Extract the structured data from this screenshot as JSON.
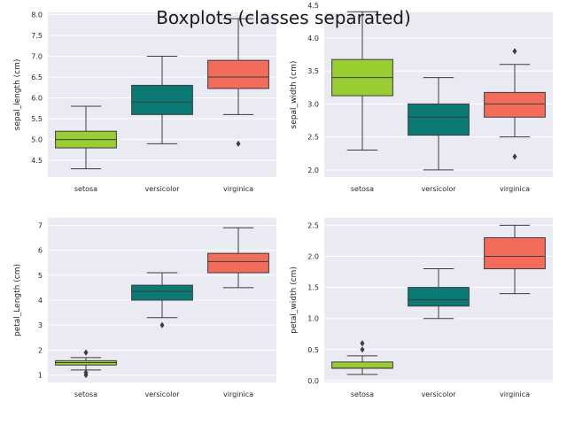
{
  "suptitle": "Boxplots (classes separated)",
  "colors": {
    "setosa": "#9acd32",
    "versicolor": "#0b7a75",
    "virginica": "#f26b5b",
    "axes_bg": "#eaeaf2",
    "grid": "#ffffff",
    "line": "#3d3d3d"
  },
  "chart_data": [
    {
      "type": "box",
      "ylabel": "sepal_length (cm)",
      "categories": [
        "setosa",
        "versicolor",
        "virginica"
      ],
      "yticks": [
        4.5,
        5.0,
        5.5,
        6.0,
        6.5,
        7.0,
        7.5,
        8.0
      ],
      "tick_labels": [
        "4.5",
        "5.0",
        "5.5",
        "6.0",
        "6.5",
        "7.0",
        "7.5",
        "8.0"
      ],
      "ylim": [
        4.1,
        8.05
      ],
      "grid": true,
      "boxes": [
        {
          "name": "setosa",
          "whislo": 4.3,
          "q1": 4.8,
          "med": 5.0,
          "q3": 5.2,
          "whishi": 5.8,
          "fliers": []
        },
        {
          "name": "versicolor",
          "whislo": 4.9,
          "q1": 5.6,
          "med": 5.9,
          "q3": 6.3,
          "whishi": 7.0,
          "fliers": []
        },
        {
          "name": "virginica",
          "whislo": 5.6,
          "q1": 6.225,
          "med": 6.5,
          "q3": 6.9,
          "whishi": 7.9,
          "fliers": [
            4.9
          ]
        }
      ]
    },
    {
      "type": "box",
      "ylabel": "sepal_width (cm)",
      "categories": [
        "setosa",
        "versicolor",
        "virginica"
      ],
      "yticks": [
        2.0,
        2.5,
        3.0,
        3.5,
        4.0,
        4.5
      ],
      "tick_labels": [
        "2.0",
        "2.5",
        "3.0",
        "3.5",
        "4.0",
        "4.5"
      ],
      "ylim": [
        1.89,
        4.39
      ],
      "grid": true,
      "boxes": [
        {
          "name": "setosa",
          "whislo": 2.3,
          "q1": 3.125,
          "med": 3.4,
          "q3": 3.675,
          "whishi": 4.4,
          "fliers": []
        },
        {
          "name": "versicolor",
          "whislo": 2.0,
          "q1": 2.525,
          "med": 2.8,
          "q3": 3.0,
          "whishi": 3.4,
          "fliers": []
        },
        {
          "name": "virginica",
          "whislo": 2.5,
          "q1": 2.8,
          "med": 3.0,
          "q3": 3.175,
          "whishi": 3.6,
          "fliers": [
            3.8,
            2.2
          ]
        }
      ]
    },
    {
      "type": "box",
      "ylabel": "petal_Length (cm)",
      "categories": [
        "setosa",
        "versicolor",
        "virginica"
      ],
      "yticks": [
        1,
        2,
        3,
        4,
        5,
        6,
        7
      ],
      "tick_labels": [
        "1",
        "2",
        "3",
        "4",
        "5",
        "6",
        "7"
      ],
      "ylim": [
        0.7,
        7.3
      ],
      "grid": true,
      "boxes": [
        {
          "name": "setosa",
          "whislo": 1.2,
          "q1": 1.4,
          "med": 1.5,
          "q3": 1.575,
          "whishi": 1.7,
          "fliers": [
            1.9,
            1.1,
            1.0
          ]
        },
        {
          "name": "versicolor",
          "whislo": 3.3,
          "q1": 4.0,
          "med": 4.35,
          "q3": 4.6,
          "whishi": 5.1,
          "fliers": [
            3.0
          ]
        },
        {
          "name": "virginica",
          "whislo": 4.5,
          "q1": 5.1,
          "med": 5.55,
          "q3": 5.875,
          "whishi": 6.9,
          "fliers": []
        }
      ]
    },
    {
      "type": "box",
      "ylabel": "petal_width (cm)",
      "categories": [
        "setosa",
        "versicolor",
        "virginica"
      ],
      "yticks": [
        0.0,
        0.5,
        1.0,
        1.5,
        2.0,
        2.5
      ],
      "tick_labels": [
        "0.0",
        "0.5",
        "1.0",
        "1.5",
        "2.0",
        "2.5"
      ],
      "ylim": [
        -0.03,
        2.62
      ],
      "grid": true,
      "boxes": [
        {
          "name": "setosa",
          "whislo": 0.1,
          "q1": 0.2,
          "med": 0.2,
          "q3": 0.3,
          "whishi": 0.4,
          "fliers": [
            0.6,
            0.5
          ]
        },
        {
          "name": "versicolor",
          "whislo": 1.0,
          "q1": 1.2,
          "med": 1.3,
          "q3": 1.5,
          "whishi": 1.8,
          "fliers": []
        },
        {
          "name": "virginica",
          "whislo": 1.4,
          "q1": 1.8,
          "med": 2.0,
          "q3": 2.3,
          "whishi": 2.5,
          "fliers": []
        }
      ]
    }
  ]
}
